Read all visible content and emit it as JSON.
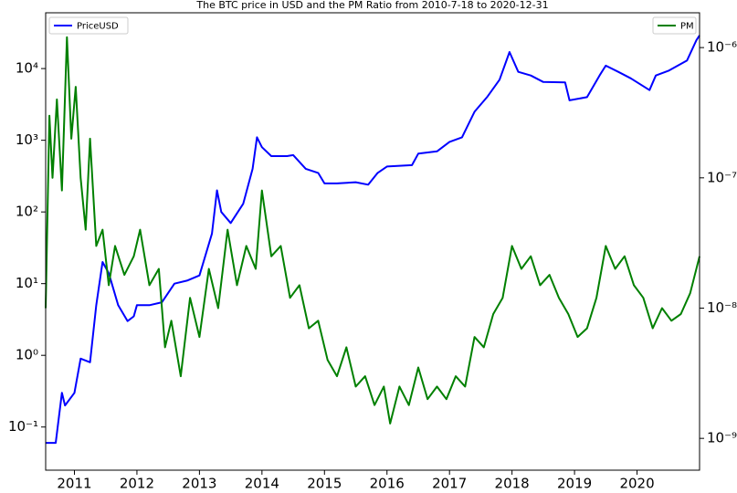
{
  "chart_data": {
    "type": "line",
    "title": "The BTC price in USD and the PM Ratio from 2010-7-18 to 2020-12-31",
    "xlim": [
      2010.54,
      2021.0
    ],
    "xticks": [
      2011,
      2012,
      2013,
      2014,
      2015,
      2016,
      2017,
      2018,
      2019,
      2020
    ],
    "ylim": [
      0.025,
      60000
    ],
    "log_scale": true,
    "yticks": [
      {
        "value": 0.1,
        "label": "10⁻¹"
      },
      {
        "value": 1,
        "label": "10⁰"
      },
      {
        "value": 10,
        "label": "10¹"
      },
      {
        "value": 100,
        "label": "10²"
      },
      {
        "value": 1000,
        "label": "10³"
      },
      {
        "value": 10000,
        "label": "10⁴"
      }
    ],
    "y2lim": [
      5.7e-10,
      1.85e-06
    ],
    "y2_log_scale": true,
    "y2ticks": [
      {
        "value": 1e-09,
        "label": "10⁻⁹"
      },
      {
        "value": 1e-08,
        "label": "10⁻⁸"
      },
      {
        "value": 1e-07,
        "label": "10⁻⁷"
      },
      {
        "value": 1e-06,
        "label": "10⁻⁶"
      }
    ],
    "series": [
      {
        "name": "PriceUSD",
        "color": "#0000ff",
        "axis": "y",
        "legend_loc": "upper left",
        "x": [
          2010.54,
          2010.7,
          2010.8,
          2010.85,
          2011.0,
          2011.1,
          2011.25,
          2011.35,
          2011.45,
          2011.55,
          2011.7,
          2011.85,
          2011.95,
          2012.0,
          2012.2,
          2012.4,
          2012.6,
          2012.8,
          2013.0,
          2013.2,
          2013.28,
          2013.35,
          2013.5,
          2013.7,
          2013.85,
          2013.92,
          2014.0,
          2014.15,
          2014.4,
          2014.5,
          2014.7,
          2014.9,
          2015.0,
          2015.2,
          2015.5,
          2015.7,
          2015.85,
          2016.0,
          2016.4,
          2016.5,
          2016.8,
          2017.0,
          2017.2,
          2017.4,
          2017.6,
          2017.8,
          2017.96,
          2018.1,
          2018.3,
          2018.5,
          2018.85,
          2018.92,
          2019.2,
          2019.4,
          2019.5,
          2019.7,
          2019.9,
          2020.2,
          2020.3,
          2020.5,
          2020.8,
          2020.95,
          2021.0
        ],
        "values": [
          0.06,
          0.06,
          0.3,
          0.2,
          0.3,
          0.9,
          0.8,
          5,
          20,
          14,
          5,
          3,
          3.5,
          5,
          5,
          5.5,
          10,
          11,
          13,
          50,
          200,
          100,
          70,
          130,
          400,
          1100,
          800,
          600,
          600,
          620,
          400,
          350,
          250,
          250,
          260,
          240,
          350,
          430,
          450,
          650,
          700,
          950,
          1100,
          2500,
          4000,
          7000,
          17000,
          9000,
          8000,
          6500,
          6400,
          3600,
          4000,
          8000,
          11000,
          9000,
          7300,
          5000,
          8000,
          9300,
          13000,
          25000,
          29000
        ]
      },
      {
        "name": "PM",
        "color": "#008000",
        "axis": "y2",
        "legend_loc": "upper right",
        "x": [
          2010.54,
          2010.6,
          2010.65,
          2010.72,
          2010.8,
          2010.88,
          2010.95,
          2011.02,
          2011.1,
          2011.18,
          2011.25,
          2011.35,
          2011.45,
          2011.55,
          2011.65,
          2011.8,
          2011.95,
          2012.05,
          2012.2,
          2012.35,
          2012.45,
          2012.55,
          2012.7,
          2012.85,
          2013.0,
          2013.15,
          2013.3,
          2013.45,
          2013.6,
          2013.75,
          2013.9,
          2014.0,
          2014.15,
          2014.3,
          2014.45,
          2014.6,
          2014.75,
          2014.9,
          2015.05,
          2015.2,
          2015.35,
          2015.5,
          2015.65,
          2015.8,
          2015.95,
          2016.05,
          2016.2,
          2016.35,
          2016.5,
          2016.65,
          2016.8,
          2016.95,
          2017.1,
          2017.25,
          2017.4,
          2017.55,
          2017.7,
          2017.85,
          2018.0,
          2018.15,
          2018.3,
          2018.45,
          2018.6,
          2018.75,
          2018.9,
          2019.05,
          2019.2,
          2019.35,
          2019.5,
          2019.65,
          2019.8,
          2019.95,
          2020.1,
          2020.25,
          2020.4,
          2020.55,
          2020.7,
          2020.85,
          2021.0
        ],
        "values": [
          1e-08,
          3e-07,
          1e-07,
          4e-07,
          8e-08,
          1.2e-06,
          2e-07,
          5e-07,
          1e-07,
          4e-08,
          2e-07,
          3e-08,
          4e-08,
          1.5e-08,
          3e-08,
          1.8e-08,
          2.5e-08,
          4e-08,
          1.5e-08,
          2e-08,
          5e-09,
          8e-09,
          3e-09,
          1.2e-08,
          6e-09,
          2e-08,
          1e-08,
          4e-08,
          1.5e-08,
          3e-08,
          2e-08,
          8e-08,
          2.5e-08,
          3e-08,
          1.2e-08,
          1.5e-08,
          7e-09,
          8e-09,
          4e-09,
          3e-09,
          5e-09,
          2.5e-09,
          3e-09,
          1.8e-09,
          2.5e-09,
          1.3e-09,
          2.5e-09,
          1.8e-09,
          3.5e-09,
          2e-09,
          2.5e-09,
          2e-09,
          3e-09,
          2.5e-09,
          6e-09,
          5e-09,
          9e-09,
          1.2e-08,
          3e-08,
          2e-08,
          2.5e-08,
          1.5e-08,
          1.8e-08,
          1.2e-08,
          9e-09,
          6e-09,
          7e-09,
          1.2e-08,
          3e-08,
          2e-08,
          2.5e-08,
          1.5e-08,
          1.2e-08,
          7e-09,
          1e-08,
          8e-09,
          9e-09,
          1.3e-08,
          2.5e-08
        ]
      }
    ]
  }
}
